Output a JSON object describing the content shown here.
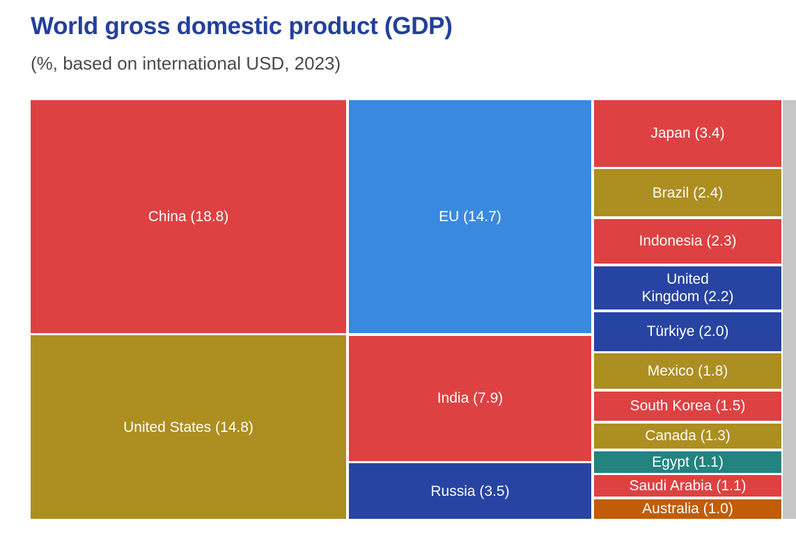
{
  "chart_data": {
    "type": "treemap",
    "title": "World gross domestic product (GDP)",
    "subtitle": "(%, based on international USD, 2023)",
    "unit": "%",
    "items": [
      {
        "name": "China",
        "value": 18.8,
        "label": "China (18.8)",
        "color": "#de4141"
      },
      {
        "name": "United States",
        "value": 14.8,
        "label": "United States (14.8)",
        "color": "#ac8e21"
      },
      {
        "name": "EU",
        "value": 14.7,
        "label": "EU (14.7)",
        "color": "#3a89e0"
      },
      {
        "name": "India",
        "value": 7.9,
        "label": "India (7.9)",
        "color": "#de4141"
      },
      {
        "name": "Russia",
        "value": 3.5,
        "label": "Russia (3.5)",
        "color": "#2744a3"
      },
      {
        "name": "Japan",
        "value": 3.4,
        "label": "Japan (3.4)",
        "color": "#de4141"
      },
      {
        "name": "Brazil",
        "value": 2.4,
        "label": "Brazil (2.4)",
        "color": "#ac8e21"
      },
      {
        "name": "Indonesia",
        "value": 2.3,
        "label": "Indonesia  (2.3)",
        "color": "#de4141"
      },
      {
        "name": "United Kingdom",
        "value": 2.2,
        "label": "United\nKingdom (2.2)",
        "color": "#2744a3"
      },
      {
        "name": "Türkiye",
        "value": 2.0,
        "label": "Türkiye (2.0)",
        "color": "#2744a3"
      },
      {
        "name": "Mexico",
        "value": 1.8,
        "label": "Mexico (1.8)",
        "color": "#ac8e21"
      },
      {
        "name": "South Korea",
        "value": 1.5,
        "label": "South Korea (1.5)",
        "color": "#de4141"
      },
      {
        "name": "Canada",
        "value": 1.3,
        "label": "Canada (1.3)",
        "color": "#ac8e21"
      },
      {
        "name": "Egypt",
        "value": 1.1,
        "label": "Egypt (1.1)",
        "color": "#22837f"
      },
      {
        "name": "Saudi Arabia",
        "value": 1.1,
        "label": "Saudi Arabia  (1.1)",
        "color": "#de4141"
      },
      {
        "name": "Australia",
        "value": 1.0,
        "label": "Australia (1.0)",
        "color": "#c05d06"
      }
    ]
  }
}
